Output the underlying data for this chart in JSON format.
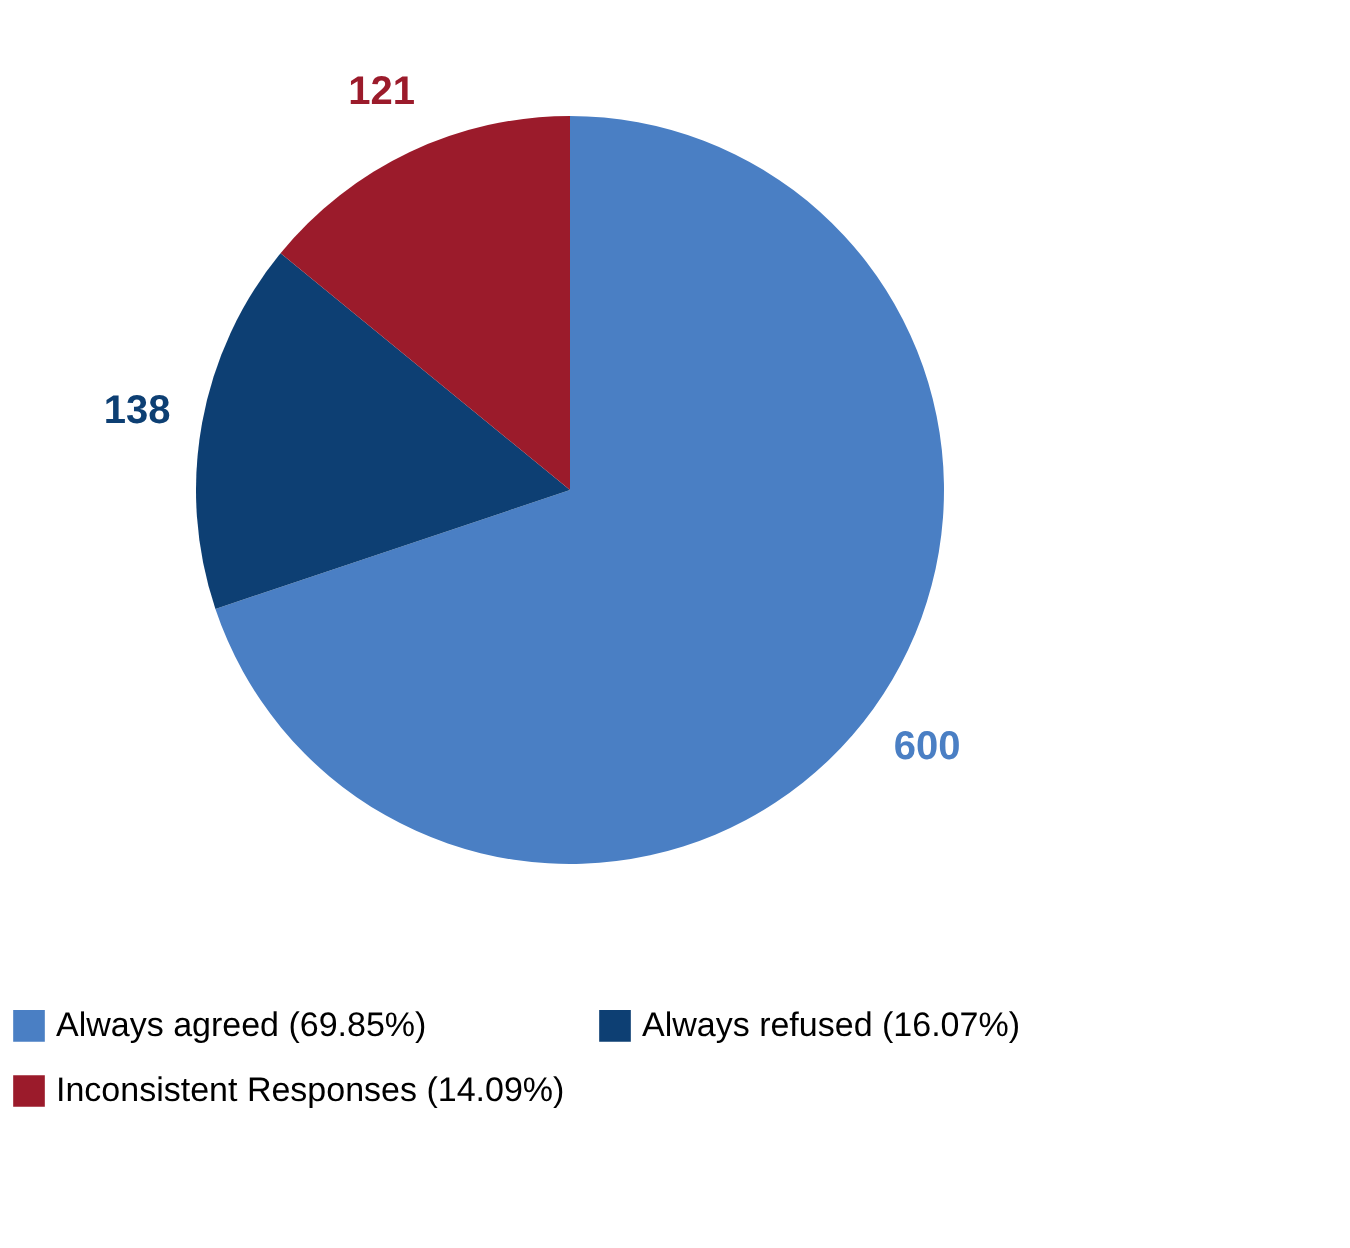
{
  "chart_data": {
    "type": "pie",
    "categories": [
      "Always agreed (69.85%)",
      "Always refused (16.07%)",
      "Inconsistent Responses (14.09%)"
    ],
    "values": [
      600,
      138,
      121
    ],
    "colors": [
      "#4a7fc4",
      "#0d3f73",
      "#9b1b2b"
    ],
    "data_labels": true,
    "legend": "bottom"
  }
}
